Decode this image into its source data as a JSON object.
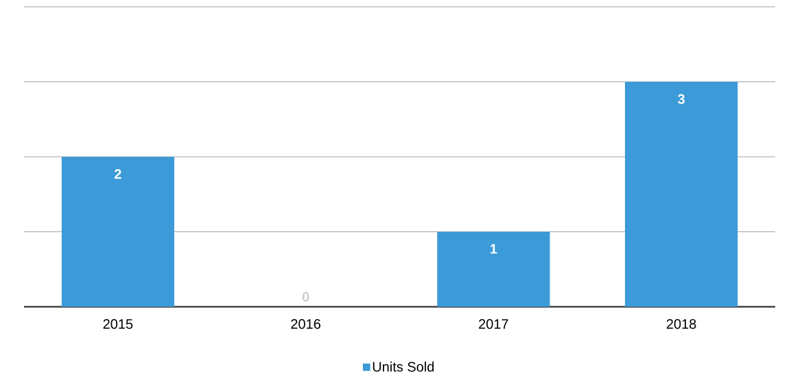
{
  "chart_data": {
    "type": "bar",
    "categories": [
      "2015",
      "2016",
      "2017",
      "2018"
    ],
    "series": [
      {
        "name": "Units Sold",
        "color": "#3c9ad8",
        "values": [
          2,
          0,
          1,
          3
        ]
      }
    ],
    "ylim": [
      0,
      4
    ],
    "yticks": [
      {
        "value": 1,
        "label": null
      },
      {
        "value": 2,
        "label": null
      },
      {
        "value": 3,
        "label": null
      },
      {
        "value": 4,
        "label": null
      }
    ],
    "tick_labels": "x",
    "grid": "y",
    "legend": "bottom",
    "data_labels": true
  }
}
